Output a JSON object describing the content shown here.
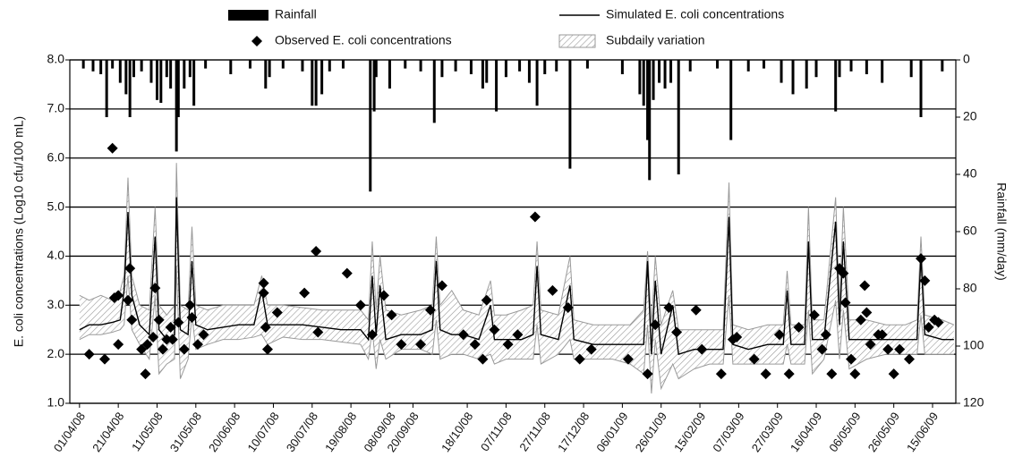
{
  "chart_data": {
    "type": "combo",
    "y_label": "E. coli concentrations (Log10 cfu/100 mL)",
    "y2_label": "Rainfall (mm/day)",
    "xlim": [
      "2008-03-27",
      "2009-06-27"
    ],
    "ylim": [
      1,
      8
    ],
    "y2lim": [
      0,
      120
    ],
    "y2_inverted": true,
    "grid": true,
    "yticks": [
      {
        "value": 1,
        "label": "1.0"
      },
      {
        "value": 2,
        "label": "2.0"
      },
      {
        "value": 3,
        "label": "3.0"
      },
      {
        "value": 4,
        "label": "4.0"
      },
      {
        "value": 5,
        "label": "5.0"
      },
      {
        "value": 6,
        "label": "6.0"
      },
      {
        "value": 7,
        "label": "7.0"
      },
      {
        "value": 8,
        "label": "8.0"
      }
    ],
    "y2ticks": [
      0,
      20,
      40,
      60,
      80,
      100,
      120
    ],
    "xticks": [
      {
        "value": "2008-04-01",
        "label": "01/04/08"
      },
      {
        "value": "2008-04-21",
        "label": "21/04/08"
      },
      {
        "value": "2008-05-11",
        "label": "11/05/08"
      },
      {
        "value": "2008-05-31",
        "label": "31/05/08"
      },
      {
        "value": "2008-06-20",
        "label": "20/06/08"
      },
      {
        "value": "2008-07-10",
        "label": "10/07/08"
      },
      {
        "value": "2008-07-30",
        "label": "30/07/08"
      },
      {
        "value": "2008-08-19",
        "label": "19/08/08"
      },
      {
        "value": "2008-09-08",
        "label": "08/09/08"
      },
      {
        "value": "2008-09-20",
        "label": "20/09/08"
      },
      {
        "value": "2008-10-18",
        "label": "18/10/08"
      },
      {
        "value": "2008-11-07",
        "label": "07/11/08"
      },
      {
        "value": "2008-11-27",
        "label": "27/11/08"
      },
      {
        "value": "2008-12-17",
        "label": "17/12/08"
      },
      {
        "value": "2009-01-06",
        "label": "06/01/09"
      },
      {
        "value": "2009-01-26",
        "label": "26/01/09"
      },
      {
        "value": "2009-02-15",
        "label": "15/02/09"
      },
      {
        "value": "2009-03-07",
        "label": "07/03/09"
      },
      {
        "value": "2009-03-27",
        "label": "27/03/09"
      },
      {
        "value": "2009-04-16",
        "label": "16/04/09"
      },
      {
        "value": "2009-05-06",
        "label": "06/05/09"
      },
      {
        "value": "2009-05-26",
        "label": "26/05/09"
      },
      {
        "value": "2009-06-15",
        "label": "15/06/09"
      }
    ],
    "series": [
      {
        "name": "Rainfall",
        "type": "bar",
        "axis": "y2",
        "color": "#000000",
        "x": [
          "2008-04-03",
          "2008-04-08",
          "2008-04-12",
          "2008-04-15",
          "2008-04-18",
          "2008-04-22",
          "2008-04-25",
          "2008-04-27",
          "2008-04-29",
          "2008-05-03",
          "2008-05-08",
          "2008-05-11",
          "2008-05-13",
          "2008-05-16",
          "2008-05-18",
          "2008-05-21",
          "2008-05-22",
          "2008-05-25",
          "2008-05-28",
          "2008-05-30",
          "2008-06-05",
          "2008-06-18",
          "2008-06-28",
          "2008-07-06",
          "2008-07-08",
          "2008-07-15",
          "2008-07-25",
          "2008-07-30",
          "2008-08-01",
          "2008-08-04",
          "2008-08-08",
          "2008-08-15",
          "2008-08-29",
          "2008-08-31",
          "2008-09-01",
          "2008-09-08",
          "2008-09-16",
          "2008-09-24",
          "2008-10-01",
          "2008-10-05",
          "2008-10-12",
          "2008-10-20",
          "2008-10-26",
          "2008-10-28",
          "2008-11-02",
          "2008-11-07",
          "2008-11-14",
          "2008-11-19",
          "2008-11-23",
          "2008-11-27",
          "2008-12-03",
          "2008-12-10",
          "2008-12-19",
          "2009-01-06",
          "2009-01-15",
          "2009-01-17",
          "2009-01-19",
          "2009-01-20",
          "2009-01-22",
          "2009-01-25",
          "2009-01-28",
          "2009-01-31",
          "2009-02-04",
          "2009-02-10",
          "2009-02-24",
          "2009-03-03",
          "2009-03-12",
          "2009-03-20",
          "2009-03-29",
          "2009-04-04",
          "2009-04-11",
          "2009-04-16",
          "2009-04-26",
          "2009-04-28",
          "2009-05-04",
          "2009-05-12",
          "2009-05-20",
          "2009-06-04",
          "2009-06-09",
          "2009-06-20"
        ],
        "values": [
          3,
          4,
          5,
          20,
          3,
          8,
          12,
          20,
          6,
          4,
          8,
          14,
          15,
          6,
          10,
          32,
          20,
          10,
          6,
          16,
          3,
          5,
          3,
          10,
          6,
          3,
          4,
          16,
          16,
          12,
          4,
          3,
          46,
          18,
          6,
          10,
          3,
          4,
          22,
          6,
          4,
          5,
          10,
          8,
          18,
          6,
          4,
          8,
          16,
          5,
          4,
          38,
          3,
          5,
          12,
          16,
          28,
          42,
          14,
          8,
          10,
          8,
          40,
          4,
          3,
          28,
          4,
          3,
          8,
          12,
          10,
          6,
          18,
          6,
          4,
          5,
          8,
          6,
          20,
          4
        ]
      },
      {
        "name": "Observed E. coli concentrations",
        "type": "scatter",
        "color": "#000000",
        "x": [
          "2008-04-06",
          "2008-04-14",
          "2008-04-18",
          "2008-04-19",
          "2008-04-21",
          "2008-04-21",
          "2008-04-26",
          "2008-04-27",
          "2008-04-28",
          "2008-05-03",
          "2008-05-05",
          "2008-05-06",
          "2008-05-09",
          "2008-05-10",
          "2008-05-12",
          "2008-05-14",
          "2008-05-16",
          "2008-05-18",
          "2008-05-19",
          "2008-05-22",
          "2008-05-25",
          "2008-05-28",
          "2008-05-29",
          "2008-06-01",
          "2008-06-04",
          "2008-07-05",
          "2008-07-05",
          "2008-07-06",
          "2008-07-07",
          "2008-07-12",
          "2008-07-26",
          "2008-08-01",
          "2008-08-02",
          "2008-08-17",
          "2008-08-24",
          "2008-08-30",
          "2008-09-05",
          "2008-09-09",
          "2008-09-14",
          "2008-09-24",
          "2008-09-29",
          "2008-10-05",
          "2008-10-16",
          "2008-10-22",
          "2008-10-26",
          "2008-10-28",
          "2008-11-01",
          "2008-11-08",
          "2008-11-13",
          "2008-11-22",
          "2008-12-01",
          "2008-12-09",
          "2008-12-15",
          "2008-12-21",
          "2009-01-09",
          "2009-01-19",
          "2009-01-23",
          "2009-01-30",
          "2009-02-03",
          "2009-02-13",
          "2009-02-16",
          "2009-02-26",
          "2009-03-04",
          "2009-03-06",
          "2009-03-15",
          "2009-03-21",
          "2009-03-28",
          "2009-04-02",
          "2009-04-07",
          "2009-04-15",
          "2009-04-19",
          "2009-04-21",
          "2009-04-24",
          "2009-04-28",
          "2009-04-30",
          "2009-05-01",
          "2009-05-04",
          "2009-05-06",
          "2009-05-09",
          "2009-05-11",
          "2009-05-12",
          "2009-05-14",
          "2009-05-18",
          "2009-05-20",
          "2009-05-23",
          "2009-05-26",
          "2009-05-29",
          "2009-06-03",
          "2009-06-09",
          "2009-06-11",
          "2009-06-13",
          "2009-06-16",
          "2009-06-18"
        ],
        "values": [
          2.0,
          1.9,
          6.2,
          3.15,
          3.2,
          2.2,
          3.1,
          3.75,
          2.7,
          2.1,
          1.6,
          2.2,
          2.35,
          3.35,
          2.7,
          2.1,
          2.3,
          2.55,
          2.3,
          2.65,
          2.1,
          3.0,
          2.75,
          2.2,
          2.4,
          3.45,
          3.25,
          2.55,
          2.1,
          2.85,
          3.25,
          4.1,
          2.45,
          3.65,
          3.0,
          2.4,
          3.2,
          2.8,
          2.2,
          2.2,
          2.9,
          3.4,
          2.4,
          2.2,
          1.9,
          3.1,
          2.5,
          2.2,
          2.4,
          4.8,
          3.3,
          2.95,
          1.9,
          2.1,
          1.9,
          1.6,
          2.6,
          2.95,
          2.45,
          2.9,
          2.1,
          1.6,
          2.3,
          2.35,
          1.9,
          1.6,
          2.4,
          1.6,
          2.55,
          2.8,
          2.1,
          2.4,
          1.6,
          3.75,
          3.65,
          3.05,
          1.9,
          1.6,
          2.7,
          3.4,
          2.85,
          2.2,
          2.4,
          2.4,
          2.1,
          1.6,
          2.1,
          1.9,
          3.95,
          3.5,
          2.55,
          2.7,
          2.65
        ]
      },
      {
        "name": "Simulated E. coli concentrations",
        "type": "line",
        "color": "#000000",
        "x": [
          "2008-04-01",
          "2008-04-06",
          "2008-04-12",
          "2008-04-18",
          "2008-04-22",
          "2008-04-24",
          "2008-04-26",
          "2008-04-28",
          "2008-05-02",
          "2008-05-07",
          "2008-05-10",
          "2008-05-12",
          "2008-05-16",
          "2008-05-20",
          "2008-05-21",
          "2008-05-23",
          "2008-05-27",
          "2008-05-29",
          "2008-05-31",
          "2008-06-06",
          "2008-06-14",
          "2008-06-22",
          "2008-06-30",
          "2008-07-04",
          "2008-07-07",
          "2008-07-15",
          "2008-07-25",
          "2008-08-04",
          "2008-08-14",
          "2008-08-24",
          "2008-08-28",
          "2008-08-30",
          "2008-09-01",
          "2008-09-03",
          "2008-09-06",
          "2008-09-14",
          "2008-09-24",
          "2008-09-30",
          "2008-10-02",
          "2008-10-04",
          "2008-10-10",
          "2008-10-16",
          "2008-10-24",
          "2008-10-30",
          "2008-11-01",
          "2008-11-07",
          "2008-11-15",
          "2008-11-21",
          "2008-11-23",
          "2008-11-25",
          "2008-12-04",
          "2008-12-10",
          "2008-12-12",
          "2008-12-22",
          "2009-01-01",
          "2009-01-10",
          "2009-01-17",
          "2009-01-19",
          "2009-01-21",
          "2009-01-23",
          "2009-01-26",
          "2009-02-01",
          "2009-02-04",
          "2009-02-12",
          "2009-02-20",
          "2009-02-27",
          "2009-03-02",
          "2009-03-04",
          "2009-03-12",
          "2009-03-22",
          "2009-03-30",
          "2009-04-01",
          "2009-04-03",
          "2009-04-10",
          "2009-04-12",
          "2009-04-14",
          "2009-04-20",
          "2009-04-26",
          "2009-04-28",
          "2009-04-30",
          "2009-05-03",
          "2009-05-12",
          "2009-05-22",
          "2009-06-01",
          "2009-06-07",
          "2009-06-09",
          "2009-06-11",
          "2009-06-20",
          "2009-06-26"
        ],
        "values": [
          2.5,
          2.6,
          2.6,
          2.65,
          2.7,
          3.3,
          4.9,
          3.2,
          2.6,
          2.4,
          4.4,
          2.5,
          2.3,
          2.4,
          5.2,
          2.5,
          2.4,
          3.9,
          2.6,
          2.5,
          2.55,
          2.6,
          2.6,
          3.3,
          2.6,
          2.6,
          2.6,
          2.55,
          2.5,
          2.5,
          2.3,
          3.6,
          2.4,
          3.4,
          2.3,
          2.4,
          2.4,
          2.5,
          3.9,
          2.5,
          2.4,
          2.4,
          2.3,
          3.0,
          2.3,
          2.3,
          2.3,
          2.4,
          3.8,
          2.4,
          2.3,
          3.4,
          2.3,
          2.2,
          2.2,
          2.2,
          2.2,
          3.9,
          2.0,
          3.5,
          2.0,
          3.0,
          2.0,
          2.1,
          2.1,
          2.1,
          4.8,
          2.2,
          2.1,
          2.2,
          2.2,
          3.3,
          2.2,
          2.2,
          4.3,
          2.3,
          2.3,
          4.7,
          2.6,
          4.3,
          2.3,
          2.3,
          2.3,
          2.3,
          2.3,
          4.0,
          2.4,
          2.3,
          2.3
        ]
      },
      {
        "name": "Subdaily variation",
        "type": "band",
        "color": "#9a9a9a",
        "x": [
          "2008-04-01",
          "2008-04-06",
          "2008-04-12",
          "2008-04-18",
          "2008-04-22",
          "2008-04-24",
          "2008-04-26",
          "2008-04-28",
          "2008-05-02",
          "2008-05-07",
          "2008-05-10",
          "2008-05-12",
          "2008-05-16",
          "2008-05-20",
          "2008-05-21",
          "2008-05-23",
          "2008-05-27",
          "2008-05-29",
          "2008-05-31",
          "2008-06-06",
          "2008-06-14",
          "2008-06-22",
          "2008-06-30",
          "2008-07-04",
          "2008-07-07",
          "2008-07-15",
          "2008-07-25",
          "2008-08-04",
          "2008-08-14",
          "2008-08-24",
          "2008-08-28",
          "2008-08-30",
          "2008-09-01",
          "2008-09-03",
          "2008-09-06",
          "2008-09-14",
          "2008-09-24",
          "2008-09-30",
          "2008-10-02",
          "2008-10-04",
          "2008-10-10",
          "2008-10-16",
          "2008-10-24",
          "2008-10-30",
          "2008-11-01",
          "2008-11-07",
          "2008-11-15",
          "2008-11-21",
          "2008-11-23",
          "2008-11-25",
          "2008-12-04",
          "2008-12-10",
          "2008-12-12",
          "2008-12-22",
          "2009-01-01",
          "2009-01-10",
          "2009-01-17",
          "2009-01-19",
          "2009-01-21",
          "2009-01-23",
          "2009-01-26",
          "2009-02-01",
          "2009-02-04",
          "2009-02-12",
          "2009-02-20",
          "2009-02-27",
          "2009-03-02",
          "2009-03-04",
          "2009-03-12",
          "2009-03-22",
          "2009-03-30",
          "2009-04-01",
          "2009-04-03",
          "2009-04-10",
          "2009-04-12",
          "2009-04-14",
          "2009-04-20",
          "2009-04-26",
          "2009-04-28",
          "2009-04-30",
          "2009-05-03",
          "2009-05-12",
          "2009-05-22",
          "2009-06-01",
          "2009-06-07",
          "2009-06-09",
          "2009-06-11",
          "2009-06-20",
          "2009-06-26"
        ],
        "lower": [
          2.3,
          2.4,
          2.4,
          2.45,
          2.5,
          2.6,
          3.6,
          2.5,
          2.2,
          1.9,
          3.2,
          1.6,
          1.8,
          1.9,
          3.8,
          1.5,
          1.9,
          2.8,
          2.1,
          2.2,
          2.3,
          2.3,
          2.35,
          2.4,
          2.2,
          2.35,
          2.3,
          2.3,
          2.25,
          2.2,
          1.9,
          2.5,
          1.7,
          2.3,
          1.9,
          2.1,
          2.1,
          2.0,
          2.7,
          1.9,
          2.0,
          2.0,
          1.9,
          2.0,
          1.8,
          1.9,
          1.9,
          1.9,
          2.6,
          1.8,
          2.0,
          2.3,
          1.9,
          1.9,
          1.9,
          1.8,
          1.6,
          2.6,
          1.2,
          2.3,
          1.3,
          1.8,
          1.5,
          1.7,
          1.8,
          1.8,
          3.2,
          1.8,
          1.8,
          1.8,
          1.8,
          2.2,
          1.8,
          1.8,
          2.9,
          1.6,
          1.9,
          3.1,
          1.9,
          2.9,
          1.7,
          1.9,
          2.0,
          2.0,
          2.0,
          2.8,
          2.0,
          2.0,
          2.0
        ],
        "upper": [
          3.2,
          3.1,
          3.2,
          3.1,
          3.3,
          3.6,
          5.6,
          3.6,
          3.0,
          2.9,
          5.0,
          3.0,
          2.8,
          3.0,
          5.9,
          3.0,
          2.9,
          4.6,
          3.0,
          2.9,
          3.0,
          3.0,
          3.0,
          3.6,
          3.0,
          3.0,
          2.95,
          2.9,
          2.9,
          2.9,
          2.7,
          4.3,
          2.9,
          4.0,
          2.9,
          2.8,
          2.9,
          3.0,
          4.4,
          3.0,
          3.3,
          2.9,
          2.8,
          3.5,
          2.8,
          2.8,
          2.9,
          3.0,
          4.3,
          2.9,
          2.8,
          4.0,
          2.7,
          2.6,
          2.6,
          2.6,
          2.9,
          4.1,
          2.6,
          4.0,
          2.6,
          3.3,
          2.5,
          2.5,
          2.5,
          2.5,
          5.5,
          2.6,
          2.5,
          2.6,
          2.6,
          3.7,
          2.6,
          2.6,
          5.0,
          2.7,
          2.7,
          5.2,
          3.0,
          5.0,
          2.7,
          2.7,
          2.6,
          2.6,
          2.7,
          4.4,
          2.8,
          2.7,
          2.6
        ]
      }
    ]
  }
}
